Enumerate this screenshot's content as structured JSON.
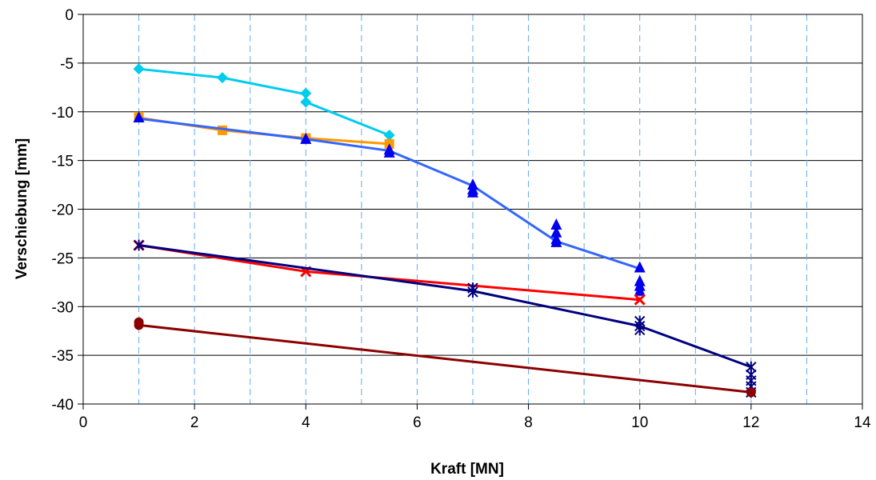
{
  "chart_data": {
    "type": "line",
    "title": "",
    "xlabel": "Kraft [MN]",
    "ylabel": "Verschiebung [mm]",
    "xlim": [
      0,
      14
    ],
    "ylim": [
      -40,
      0
    ],
    "x_ticks": [
      0,
      2,
      4,
      6,
      8,
      10,
      12,
      14
    ],
    "y_ticks": [
      0,
      -5,
      -10,
      -15,
      -20,
      -25,
      -30,
      -35,
      -40
    ],
    "x_tick_labels": [
      "0",
      "2",
      "4",
      "6",
      "8",
      "10",
      "12",
      "14"
    ],
    "y_tick_labels": [
      "0",
      "-5",
      "-10",
      "-15",
      "-20",
      "-25",
      "-30",
      "-35",
      "-40"
    ],
    "grid": {
      "horizontal": "solid",
      "vertical": "dashed"
    },
    "series": [
      {
        "color": "#00ccee",
        "marker": "diamond",
        "line": [
          [
            1,
            -5.6
          ],
          [
            2.5,
            -6.5
          ],
          [
            4,
            -8.2
          ],
          [
            4,
            -9.0
          ],
          [
            5.5,
            -12.4
          ]
        ],
        "points": [
          [
            1,
            -5.6
          ],
          [
            2.5,
            -6.5
          ],
          [
            4,
            -8.1
          ],
          [
            4,
            -9.0
          ],
          [
            5.5,
            -12.4
          ]
        ]
      },
      {
        "color": "#ff9900",
        "marker": "square",
        "line": [
          [
            1,
            -10.6
          ],
          [
            2.5,
            -11.9
          ],
          [
            4,
            -12.7
          ],
          [
            5.5,
            -13.3
          ]
        ],
        "points": [
          [
            1,
            -10.5
          ],
          [
            2.5,
            -11.9
          ],
          [
            4,
            -12.7
          ],
          [
            5.5,
            -13.3
          ]
        ]
      },
      {
        "color": "#3366ff",
        "marker": "triangle",
        "marker_color": "#0000ee",
        "line": [
          [
            1,
            -10.7
          ],
          [
            4,
            -12.8
          ],
          [
            5.5,
            -14.0
          ],
          [
            7,
            -17.6
          ],
          [
            8.5,
            -23.3
          ],
          [
            10,
            -26.1
          ]
        ],
        "points": [
          [
            1,
            -10.6
          ],
          [
            4,
            -12.8
          ],
          [
            5.5,
            -13.9
          ],
          [
            5.5,
            -14.2
          ],
          [
            7,
            -17.5
          ],
          [
            7,
            -18.0
          ],
          [
            7,
            -18.3
          ],
          [
            8.5,
            -21.6
          ],
          [
            8.5,
            -22.4
          ],
          [
            8.5,
            -23.1
          ],
          [
            8.5,
            -23.4
          ],
          [
            10,
            -26.0
          ],
          [
            10,
            -27.4
          ],
          [
            10,
            -27.9
          ],
          [
            10,
            -28.4
          ]
        ]
      },
      {
        "color": "#ff0000",
        "marker": "x",
        "line": [
          [
            1,
            -23.7
          ],
          [
            4,
            -26.4
          ],
          [
            10,
            -29.3
          ]
        ],
        "points": [
          [
            1,
            -23.7
          ],
          [
            4,
            -26.4
          ],
          [
            10,
            -29.3
          ]
        ]
      },
      {
        "color": "#000080",
        "marker": "asterisk",
        "line": [
          [
            1,
            -23.7
          ],
          [
            7,
            -28.4
          ],
          [
            10,
            -32.0
          ],
          [
            12,
            -36.2
          ]
        ],
        "points": [
          [
            1,
            -23.7
          ],
          [
            7,
            -28.1
          ],
          [
            7,
            -28.5
          ],
          [
            10,
            -31.5
          ],
          [
            10,
            -32.0
          ],
          [
            10,
            -32.4
          ],
          [
            12,
            -36.2
          ],
          [
            12,
            -37.0
          ],
          [
            12,
            -37.6
          ],
          [
            12,
            -38.2
          ],
          [
            12,
            -38.8
          ]
        ]
      },
      {
        "color": "#8b0000",
        "marker": "circle",
        "line": [
          [
            1,
            -31.9
          ],
          [
            12,
            -38.8
          ]
        ],
        "points": [
          [
            1,
            -31.6
          ],
          [
            1,
            -31.9
          ],
          [
            12,
            -38.8
          ]
        ]
      }
    ]
  }
}
